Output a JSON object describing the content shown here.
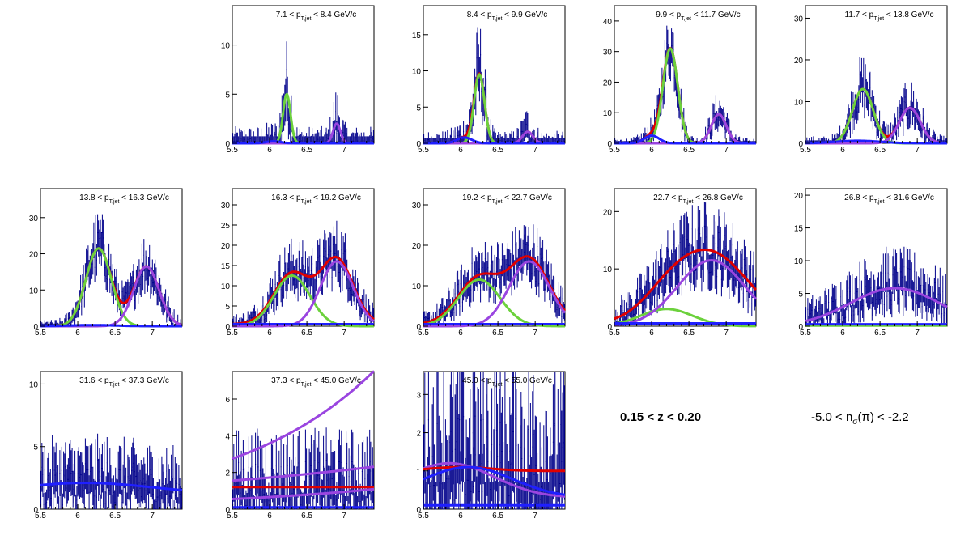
{
  "z_label": "0.15 < z < 0.20",
  "nsigma_label": {
    "pre": "-5.0 < n",
    "sub": "σ",
    "post": "(π) < -2.2"
  },
  "colors": {
    "hist": "#00008b",
    "total": "#e00000",
    "pion": "#6cd13c",
    "kaon": "#9a45e0",
    "proton": "#1f1fff",
    "background": "#ffffff"
  },
  "chart_data": [
    {
      "type": "line",
      "title": {
        "lo": "7.1",
        "hi": "8.4",
        "unit": "GeV/c"
      },
      "xlim": [
        5.5,
        7.4
      ],
      "ylim": [
        0,
        14
      ],
      "xticks": [
        5.5,
        6,
        6.5,
        7
      ],
      "yticks": [
        0,
        5,
        10
      ],
      "series": [
        {
          "color": "green",
          "baseline": 0,
          "peaks": [
            [
              5.0,
              6.23,
              0.05
            ]
          ]
        },
        {
          "color": "purple",
          "baseline": 0,
          "peaks": [
            [
              2.0,
              6.9,
              0.05
            ]
          ]
        },
        {
          "color": "blue",
          "baseline": 0,
          "peaks": [
            [
              0.2,
              6.05,
              0.1
            ]
          ]
        }
      ]
    },
    {
      "type": "line",
      "title": {
        "lo": "8.4",
        "hi": "9.9",
        "unit": "GeV/c"
      },
      "xlim": [
        5.5,
        7.4
      ],
      "ylim": [
        0,
        19
      ],
      "xticks": [
        5.5,
        6,
        6.5,
        7
      ],
      "yticks": [
        0,
        5,
        10,
        15
      ],
      "series": [
        {
          "color": "red",
          "baseline": 0,
          "peaks": [
            [
              9.5,
              6.25,
              0.07
            ],
            [
              1.6,
              6.9,
              0.07
            ],
            [
              0.8,
              6.05,
              0.1
            ]
          ]
        },
        {
          "color": "green",
          "baseline": 0,
          "peaks": [
            [
              9.5,
              6.25,
              0.07
            ]
          ]
        },
        {
          "color": "purple",
          "baseline": 0,
          "peaks": [
            [
              1.6,
              6.9,
              0.07
            ]
          ]
        },
        {
          "color": "blue",
          "baseline": 0,
          "peaks": [
            [
              0.8,
              6.05,
              0.1
            ]
          ]
        }
      ]
    },
    {
      "type": "line",
      "title": {
        "lo": "9.9",
        "hi": "11.7",
        "unit": "GeV/c"
      },
      "xlim": [
        5.5,
        7.4
      ],
      "ylim": [
        0,
        45
      ],
      "xticks": [
        5.5,
        6,
        6.5,
        7
      ],
      "yticks": [
        0,
        10,
        20,
        30,
        40
      ],
      "series": [
        {
          "color": "red",
          "baseline": 0,
          "peaks": [
            [
              31,
              6.25,
              0.1
            ],
            [
              9.5,
              6.9,
              0.1
            ],
            [
              2.5,
              6.0,
              0.1
            ]
          ]
        },
        {
          "color": "green",
          "baseline": 0,
          "peaks": [
            [
              31,
              6.25,
              0.1
            ]
          ]
        },
        {
          "color": "purple",
          "baseline": 0,
          "peaks": [
            [
              9.5,
              6.9,
              0.1
            ]
          ]
        },
        {
          "color": "blue",
          "baseline": 0,
          "peaks": [
            [
              2.5,
              6.0,
              0.1
            ]
          ]
        }
      ]
    },
    {
      "type": "line",
      "title": {
        "lo": "11.7",
        "hi": "13.8",
        "unit": "GeV/c"
      },
      "xlim": [
        5.5,
        7.4
      ],
      "ylim": [
        0,
        33
      ],
      "xticks": [
        5.5,
        6,
        6.5,
        7
      ],
      "yticks": [
        0,
        10,
        20,
        30
      ],
      "series": [
        {
          "color": "red",
          "baseline": 0,
          "peaks": [
            [
              13,
              6.27,
              0.14
            ],
            [
              8.5,
              6.9,
              0.14
            ]
          ]
        },
        {
          "color": "green",
          "baseline": 0,
          "peaks": [
            [
              13,
              6.27,
              0.14
            ]
          ]
        },
        {
          "color": "purple",
          "baseline": 0,
          "peaks": [
            [
              8.5,
              6.9,
              0.14
            ]
          ]
        },
        {
          "color": "blue",
          "baseline": 0,
          "peaks": [
            [
              0.6,
              6.2,
              0.3
            ]
          ]
        }
      ]
    },
    {
      "type": "line",
      "title": {
        "lo": "13.8",
        "hi": "16.3",
        "unit": "GeV/c"
      },
      "xlim": [
        5.5,
        7.4
      ],
      "ylim": [
        0,
        38
      ],
      "xticks": [
        5.5,
        6,
        6.5,
        7
      ],
      "yticks": [
        0,
        10,
        20,
        30
      ],
      "series": [
        {
          "color": "red",
          "baseline": 0,
          "peaks": [
            [
              21.5,
              6.28,
              0.17
            ],
            [
              16.5,
              6.92,
              0.17
            ]
          ]
        },
        {
          "color": "green",
          "baseline": 0,
          "peaks": [
            [
              21.5,
              6.28,
              0.17
            ]
          ]
        },
        {
          "color": "purple",
          "baseline": 0,
          "peaks": [
            [
              16.5,
              6.92,
              0.17
            ]
          ]
        },
        {
          "color": "blue",
          "baseline": 0,
          "peaks": [
            [
              0.3,
              6.2,
              0.3
            ]
          ]
        }
      ]
    },
    {
      "type": "line",
      "title": {
        "lo": "16.3",
        "hi": "19.2",
        "unit": "GeV/c"
      },
      "xlim": [
        5.5,
        7.4
      ],
      "ylim": [
        0,
        34
      ],
      "xticks": [
        5.5,
        6,
        6.5,
        7
      ],
      "yticks": [
        0,
        5,
        10,
        15,
        20,
        25,
        30
      ],
      "series": [
        {
          "color": "red",
          "baseline": 0.5,
          "peaks": [
            [
              12.5,
              6.3,
              0.24
            ],
            [
              16,
              6.9,
              0.22
            ]
          ]
        },
        {
          "color": "green",
          "baseline": 0,
          "peaks": [
            [
              12.5,
              6.3,
              0.24
            ]
          ]
        },
        {
          "color": "purple",
          "baseline": 0,
          "peaks": [
            [
              16,
              6.9,
              0.22
            ]
          ]
        },
        {
          "color": "blue",
          "baseline": 0.5,
          "peaks": []
        }
      ]
    },
    {
      "type": "line",
      "title": {
        "lo": "19.2",
        "hi": "22.7",
        "unit": "GeV/c"
      },
      "xlim": [
        5.5,
        7.4
      ],
      "ylim": [
        0,
        34
      ],
      "xticks": [
        5.5,
        6,
        6.5,
        7
      ],
      "yticks": [
        0,
        10,
        20,
        30
      ],
      "series": [
        {
          "color": "red",
          "baseline": 0.5,
          "peaks": [
            [
              11.5,
              6.25,
              0.28
            ],
            [
              16,
              6.92,
              0.27
            ]
          ]
        },
        {
          "color": "green",
          "baseline": 0,
          "peaks": [
            [
              11.5,
              6.25,
              0.28
            ]
          ]
        },
        {
          "color": "purple",
          "baseline": 0,
          "peaks": [
            [
              16,
              6.92,
              0.27
            ]
          ]
        },
        {
          "color": "blue",
          "baseline": 0.5,
          "peaks": []
        }
      ]
    },
    {
      "type": "line",
      "title": {
        "lo": "22.7",
        "hi": "26.8",
        "unit": "GeV/c"
      },
      "xlim": [
        5.5,
        7.4
      ],
      "ylim": [
        0,
        24
      ],
      "xticks": [
        5.5,
        6,
        6.5,
        7
      ],
      "yticks": [
        0,
        10,
        20
      ],
      "series": [
        {
          "color": "red",
          "baseline": 0.5,
          "peaks": [
            [
              3,
              6.2,
              0.35
            ],
            [
              12,
              6.8,
              0.5
            ]
          ]
        },
        {
          "color": "green",
          "baseline": 0,
          "peaks": [
            [
              3,
              6.2,
              0.35
            ]
          ]
        },
        {
          "color": "purple",
          "baseline": 0,
          "peaks": [
            [
              11.5,
              6.8,
              0.45
            ]
          ]
        },
        {
          "color": "blue",
          "baseline": 0.5,
          "peaks": []
        }
      ]
    },
    {
      "type": "line",
      "title": {
        "lo": "26.8",
        "hi": "31.6",
        "unit": "GeV/c"
      },
      "xlim": [
        5.5,
        7.4
      ],
      "ylim": [
        0,
        21
      ],
      "xticks": [
        5.5,
        6,
        6.5,
        7
      ],
      "yticks": [
        0,
        5,
        10,
        15,
        20
      ],
      "series": [
        {
          "color": "purple",
          "baseline": 0,
          "peaks": [
            [
              5.8,
              6.7,
              0.6
            ]
          ]
        },
        {
          "color": "green",
          "baseline": 0.1,
          "peaks": []
        },
        {
          "color": "blue",
          "baseline": 0.3,
          "peaks": []
        }
      ]
    },
    {
      "type": "line",
      "title": {
        "lo": "31.6",
        "hi": "37.3",
        "unit": "GeV/c"
      },
      "xlim": [
        5.5,
        7.4
      ],
      "ylim": [
        0,
        11
      ],
      "xticks": [
        5.5,
        6,
        6.5,
        7
      ],
      "yticks": [
        0,
        5,
        10
      ],
      "series": [
        {
          "color": "blue",
          "baseline": 1.2,
          "peaks": [
            [
              0.9,
              6.1,
              0.9
            ]
          ]
        }
      ]
    },
    {
      "type": "line",
      "title": {
        "lo": "37.3",
        "hi": "45.0",
        "unit": "GeV/c"
      },
      "xlim": [
        5.5,
        7.4
      ],
      "ylim": [
        0,
        7.5
      ],
      "xticks": [
        5.5,
        6,
        6.5,
        7
      ],
      "yticks": [
        0,
        2,
        4,
        6
      ],
      "series": [
        {
          "color": "purple",
          "baseline": 0,
          "peaks": [],
          "exp": [
            2.75,
            0.53
          ]
        },
        {
          "color": "purple",
          "baseline": 0,
          "peaks": [],
          "exp": [
            1.55,
            0.21
          ]
        },
        {
          "color": "red",
          "baseline": 1.2,
          "peaks": []
        },
        {
          "color": "purple",
          "baseline": 0,
          "peaks": [],
          "exp": [
            0.55,
            0.36
          ]
        },
        {
          "color": "blue",
          "baseline": 0.1,
          "peaks": []
        }
      ]
    },
    {
      "type": "line",
      "title": {
        "lo": "45.0",
        "hi": "55.0",
        "unit": "GeV/c"
      },
      "xlim": [
        5.5,
        7.4
      ],
      "ylim": [
        0,
        3.6
      ],
      "xticks": [
        5.5,
        6,
        6.5,
        7
      ],
      "yticks": [
        0,
        1,
        2,
        3
      ],
      "series": [
        {
          "color": "purple",
          "baseline": 0.3,
          "peaks": [
            [
              0.9,
              5.85,
              0.6
            ]
          ]
        },
        {
          "color": "red",
          "baseline": 1.0,
          "peaks": [
            [
              0.1,
              6.0,
              0.4
            ]
          ]
        },
        {
          "color": "blue",
          "baseline": 0.3,
          "peaks": [
            [
              0.8,
              6.1,
              0.6
            ]
          ]
        },
        {
          "color": "blue",
          "baseline": 0.1,
          "peaks": []
        }
      ]
    }
  ]
}
